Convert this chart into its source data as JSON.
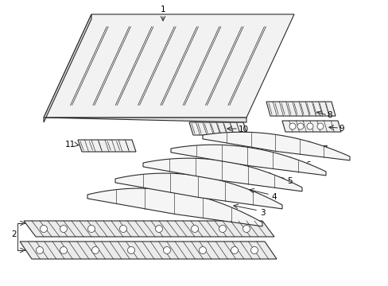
{
  "background_color": "#ffffff",
  "line_color": "#2a2a2a",
  "label_color": "#000000",
  "figsize": [
    4.89,
    3.6
  ],
  "dpi": 100,
  "label_fontsize": 7.5
}
